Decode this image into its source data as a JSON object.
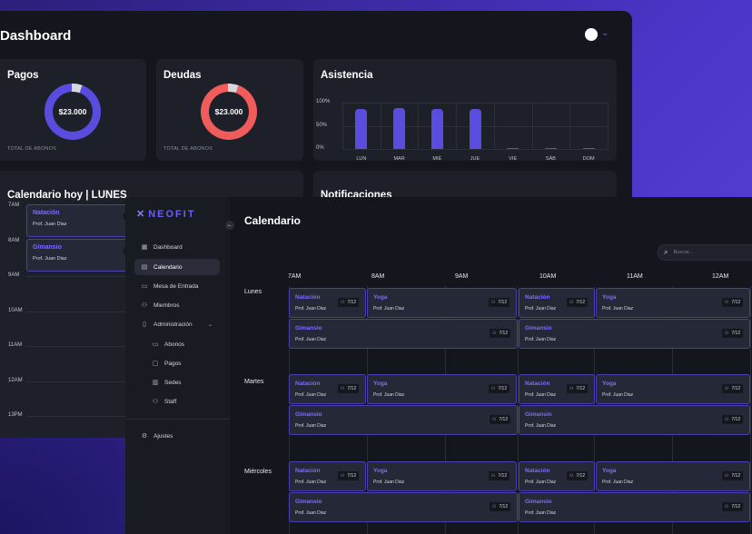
{
  "dashboard": {
    "title": "Dashboard",
    "accent": "#5b4ce0",
    "cards": {
      "pagos": {
        "title": "Pagos",
        "amount": "$23.000",
        "footer": "TOTAL DE ABONOS",
        "color": "#5b4ce0",
        "fraction": 0.94
      },
      "deudas": {
        "title": "Deudas",
        "amount": "$23.000",
        "footer": "TOTAL DE ABONOS",
        "color": "#f05b5b",
        "fraction": 0.94
      },
      "asistencia": {
        "title": "Asistencia"
      }
    },
    "calendario_hoy": {
      "title": "Calendario hoy  |  LUNES",
      "times": [
        "7AM",
        "8AM",
        "9AM",
        "10AM",
        "11AM",
        "12AM",
        "13PM"
      ],
      "events": [
        {
          "title": "Natación",
          "prof": "Prof. Juan Diaz"
        },
        {
          "title": "Gimansio",
          "prof": "Prof. Juan Diaz"
        }
      ]
    },
    "notificaciones": {
      "title": "Notificaciones"
    }
  },
  "chart_data": {
    "type": "bar",
    "title": "Asistencia",
    "categories": [
      "LUN",
      "MAR",
      "MIÉ",
      "JUE",
      "VIE",
      "SÁB",
      "DOM"
    ],
    "values": [
      86,
      88,
      86,
      86,
      0,
      0,
      0
    ],
    "yticks": [
      "100%",
      "50%",
      "0%"
    ],
    "ylim": [
      0,
      100
    ],
    "grid": true,
    "color": "#5b4ce0"
  },
  "sidebar": {
    "logo": "NEOFIT",
    "items": [
      {
        "label": "Dashboard",
        "icon": "grid-icon"
      },
      {
        "label": "Calendario",
        "icon": "calendar-icon"
      },
      {
        "label": "Mesa de Entrada",
        "icon": "desk-icon"
      },
      {
        "label": "Miembros",
        "icon": "members-icon"
      },
      {
        "label": "Administración",
        "icon": "clipboard-icon"
      }
    ],
    "sub_items": [
      {
        "label": "Abonos",
        "icon": "card-icon"
      },
      {
        "label": "Pagos",
        "icon": "wallet-icon"
      },
      {
        "label": "Sedes",
        "icon": "building-icon"
      },
      {
        "label": "Staff",
        "icon": "staff-icon"
      }
    ],
    "settings": {
      "label": "Ajustes",
      "icon": "gear-icon"
    }
  },
  "calendar": {
    "title": "Calendario",
    "search_placeholder": "Buscar...",
    "hours": [
      "7AM",
      "8AM",
      "9AM",
      "10AM",
      "11AM",
      "12AM"
    ],
    "days": [
      {
        "label": "Lunes",
        "events": [
          {
            "title": "Natación",
            "prof": "Prof. Juan Diaz",
            "count": "7/12"
          },
          {
            "title": "Yoga",
            "prof": "Prof. Juan Diaz",
            "count": "7/12"
          },
          {
            "title": "Natación",
            "prof": "Prof. Juan Diaz",
            "count": "7/12"
          },
          {
            "title": "Yoga",
            "prof": "Prof. Juan Diaz",
            "count": "7/12"
          },
          {
            "title": "Gimansio",
            "prof": "Prof. Juan Diaz",
            "count": "7/12"
          },
          {
            "title": "Gimansio",
            "prof": "Prof. Juan Diaz",
            "count": "7/12"
          }
        ]
      },
      {
        "label": "Martes",
        "events": [
          {
            "title": "Natación",
            "prof": "Prof. Juan Diaz",
            "count": "7/12"
          },
          {
            "title": "Yoga",
            "prof": "Prof. Juan Diaz",
            "count": "7/12"
          },
          {
            "title": "Natación",
            "prof": "Prof. Juan Diaz",
            "count": "7/12"
          },
          {
            "title": "Yoga",
            "prof": "Prof. Juan Diaz",
            "count": "7/12"
          },
          {
            "title": "Gimansio",
            "prof": "Prof. Juan Diaz",
            "count": "7/12"
          },
          {
            "title": "Gimansio",
            "prof": "Prof. Juan Diaz",
            "count": "7/12"
          }
        ]
      },
      {
        "label": "Miércoles",
        "events": [
          {
            "title": "Natación",
            "prof": "Prof. Juan Diaz",
            "count": "7/12"
          },
          {
            "title": "Yoga",
            "prof": "Prof. Juan Diaz",
            "count": "7/12"
          },
          {
            "title": "Natación",
            "prof": "Prof. Juan Diaz",
            "count": "7/12"
          },
          {
            "title": "Yoga",
            "prof": "Prof. Juan Diaz",
            "count": "7/12"
          },
          {
            "title": "Gimansio",
            "prof": "Prof. Juan Diaz",
            "count": "7/12"
          },
          {
            "title": "Gimansio",
            "prof": "Prof. Juan Diaz",
            "count": "7/12"
          }
        ]
      }
    ]
  }
}
